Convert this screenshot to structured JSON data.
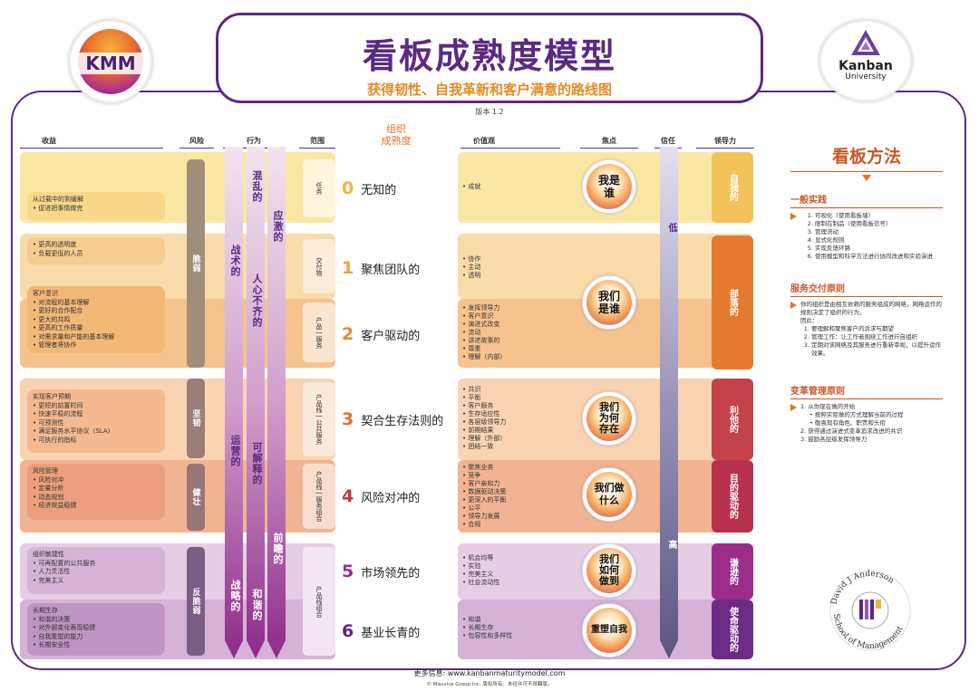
{
  "header": {
    "title": "看板成熟度模型",
    "subtitle": "获得韧性、自我革新和客户满意的路线图",
    "version": "版本 1.2"
  },
  "logos": {
    "kmm": "KMM",
    "ku_name": "Kanban",
    "ku_sub": "University",
    "school_top": "David J Anderson",
    "school_bottom": "School of Management"
  },
  "columns": {
    "benefits": "收益",
    "risk": "风险",
    "behavior": "行为",
    "scope": "范围",
    "maturity": "组织\n成熟度",
    "values": "价值观",
    "focus": "焦点",
    "trust": "信任",
    "leadership": "领导力"
  },
  "benefits": [
    {
      "items": [
        "从过载中的到缓解",
        "促进把事情做完"
      ]
    },
    {
      "items": [
        "更高的透明度",
        "负载更低的人员"
      ]
    },
    {
      "items": [
        "客户意识",
        "对流程的基本理解",
        "更好的合作配合",
        "更大的共鸣",
        "更高的工作质量",
        "对需求量和产能的基本理解",
        "管理者将协作"
      ]
    },
    {
      "items": [
        "实现客户预期",
        "更短的前置时间",
        "快速平稳的流程",
        "可预测性",
        "满足服务水平协议（SLA)",
        "可执行的指标"
      ]
    },
    {
      "items": [
        "风险管理",
        "风险对冲",
        "定量分析",
        "动态规划",
        "经济效益稳健"
      ]
    },
    {
      "items": [
        "组织敏捷性",
        "可再配置的公共服务",
        "人力灵活性",
        "完美主义"
      ]
    },
    {
      "items": [
        "长期生存",
        "和谐的决策",
        "对外部变化表现稳健",
        "自我重塑的能力",
        "长期安全性"
      ]
    }
  ],
  "risk": [
    "脆弱",
    "坚韧",
    "健壮",
    "反脆弱"
  ],
  "behavior": {
    "arrow1_top": "战术的",
    "arrow1_bottom": "运营的",
    "arrow1_end": "战略的",
    "arrow2_top": "混乱的",
    "arrow2_mid": "人心不齐的",
    "arrow2_bottom": "可解释的",
    "arrow2_end": "和谐的",
    "arrow3_top": "应激的",
    "arrow3_bottom": "前瞻的"
  },
  "scope": [
    "任务",
    "交付物",
    "产品 | 服务",
    "产品线 | 公共服务",
    "产品线 | 服务组合",
    "产品线组合"
  ],
  "levels": [
    {
      "num": "0",
      "label": "无知的"
    },
    {
      "num": "1",
      "label": "聚焦团队的"
    },
    {
      "num": "2",
      "label": "客户驱动的"
    },
    {
      "num": "3",
      "label": "契合生存法则的"
    },
    {
      "num": "4",
      "label": "风险对冲的"
    },
    {
      "num": "5",
      "label": "市场领先的"
    },
    {
      "num": "6",
      "label": "基业长青的"
    }
  ],
  "values": [
    [
      "成就"
    ],
    [
      "协作",
      "主动",
      "透明"
    ],
    [
      "发挥领导力",
      "客户意识",
      "演进式改变",
      "流动",
      "讲述故事的",
      "尊重",
      "理解（内部）"
    ],
    [
      "共识",
      "平衡",
      "客户服务",
      "生存适应性",
      "各层级领导力",
      "前期结果",
      "理解（外部）",
      "团结一致"
    ],
    [
      "聚焦业务",
      "竞争",
      "客户亲和力",
      "数据驱动决策",
      "更深入的平衡",
      "公平",
      "领导力发展",
      "合规"
    ],
    [
      "机会均等",
      "实验",
      "完美主义",
      "社会流动性"
    ],
    [
      "和谐",
      "长期生存",
      "包容性和多样性"
    ]
  ],
  "focus": [
    "我是\n谁",
    "我们\n是谁",
    "我们\n为何\n存在",
    "我们做\n什么",
    "我们\n如何\n做到",
    "重塑自我"
  ],
  "trust": {
    "low": "低",
    "high": "高"
  },
  "leadership": [
    "自我的",
    "部落的",
    "利他的",
    "目的驱动的",
    "谦逊的",
    "使命驱动的"
  ],
  "method": {
    "title": "看板方法",
    "general_title": "一般实践",
    "general": [
      "可视化（使用看板墙）",
      "限制在制品（使用看板信号）",
      "管理流动",
      "显式化规则",
      "实现反馈环路",
      "使用模型和科学方法进行协同改进和实验演进"
    ],
    "service_title": "服务交付原则",
    "service_intro": "你的组织是由相互依赖的服务组成的网络，网络运作的规则决定了组织的行为。",
    "service_intro2": "因此：",
    "service": [
      "要理解和聚焦客户的诉求与期望",
      "管理工作：让工作者围绕工作进行自组织",
      "定期对该网络及其服务进行重新审视，以提升运作效果。"
    ],
    "change_title": "变革管理原则",
    "change": [
      "从你现在做的开始",
      "按照实际做的方式理解当前的过程",
      "敬畏现有角色、职责和头衔",
      "获得通过演进式变革追求改进的共识",
      "鼓励各层级发挥领导力"
    ]
  },
  "footer": {
    "more": "更多信息: www.kanbanmaturitymodel.com",
    "copyright": "© Mauvius Group Inc. 版权所有。未经许可不得翻版。"
  }
}
